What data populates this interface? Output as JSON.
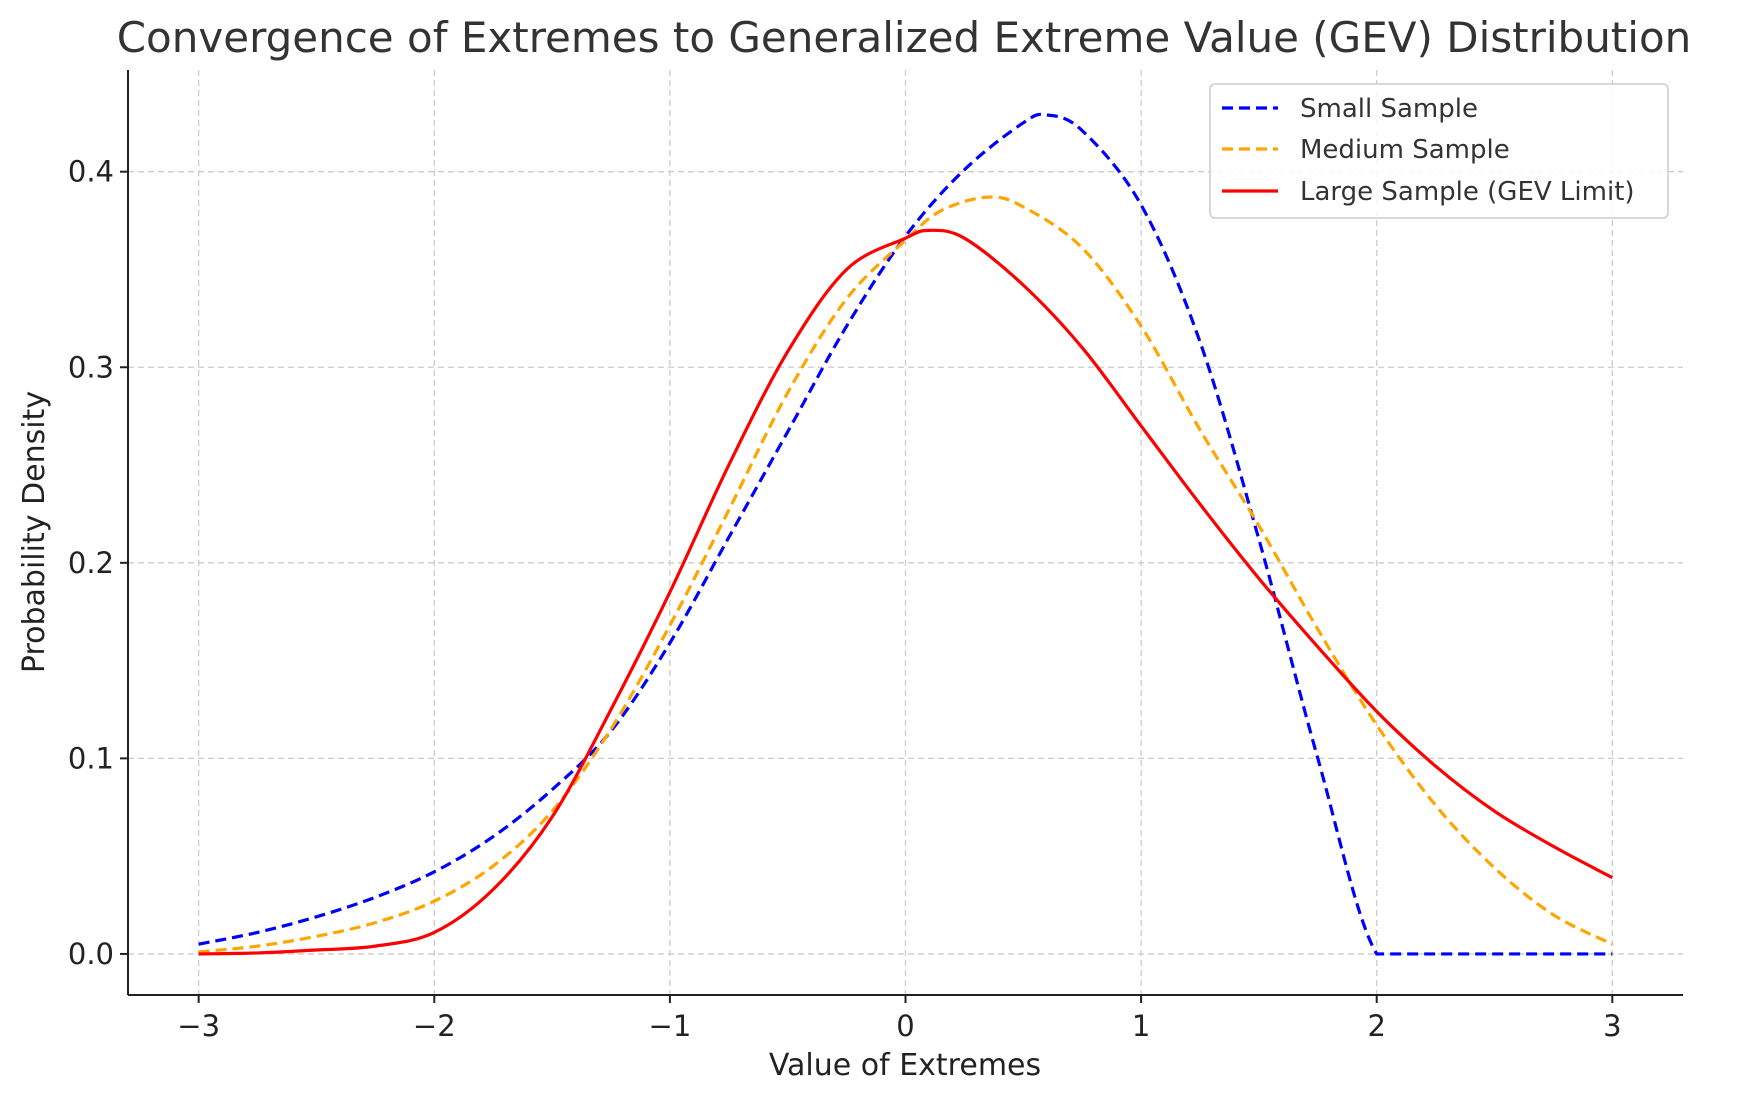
{
  "chart_data": {
    "type": "line",
    "title": "Convergence of Extremes to Generalized Extreme Value (GEV) Distribution",
    "xlabel": "Value of Extremes",
    "ylabel": "Probability Density",
    "xlim": [
      -3.3,
      3.3
    ],
    "ylim": [
      -0.021,
      0.452
    ],
    "xticks": [
      -3,
      -2,
      -1,
      0,
      1,
      2,
      3
    ],
    "xtick_labels": [
      "−3",
      "−2",
      "−1",
      "0",
      "1",
      "2",
      "3"
    ],
    "yticks": [
      0.0,
      0.1,
      0.2,
      0.3,
      0.4
    ],
    "ytick_labels": [
      "0.0",
      "0.1",
      "0.2",
      "0.3",
      "0.4"
    ],
    "grid": true,
    "legend_position": "top-right",
    "series": [
      {
        "name": "Small Sample",
        "color": "#0000ff",
        "style": "dashed",
        "x": [
          -3.0,
          -2.75,
          -2.5,
          -2.25,
          -2.0,
          -1.75,
          -1.5,
          -1.25,
          -1.0,
          -0.75,
          -0.5,
          -0.25,
          0.0,
          0.25,
          0.5,
          0.6,
          0.75,
          1.0,
          1.25,
          1.5,
          1.75,
          2.0,
          2.25,
          2.5,
          2.75,
          3.0
        ],
        "y": [
          0.005,
          0.011,
          0.019,
          0.029,
          0.042,
          0.06,
          0.084,
          0.114,
          0.159,
          0.213,
          0.267,
          0.321,
          0.367,
          0.401,
          0.425,
          0.429,
          0.421,
          0.383,
          0.313,
          0.212,
          0.1,
          0.0,
          0.0,
          0.0,
          0.0,
          0.0
        ]
      },
      {
        "name": "Medium Sample",
        "color": "#ffa500",
        "style": "dashed",
        "x": [
          -3.0,
          -2.75,
          -2.5,
          -2.25,
          -2.0,
          -1.75,
          -1.5,
          -1.25,
          -1.0,
          -0.75,
          -0.5,
          -0.25,
          0.0,
          0.15,
          0.35,
          0.5,
          0.75,
          1.0,
          1.25,
          1.5,
          1.75,
          2.0,
          2.25,
          2.5,
          2.75,
          3.0
        ],
        "y": [
          0.001,
          0.004,
          0.009,
          0.016,
          0.027,
          0.045,
          0.073,
          0.115,
          0.168,
          0.227,
          0.287,
          0.335,
          0.365,
          0.38,
          0.387,
          0.382,
          0.361,
          0.321,
          0.268,
          0.219,
          0.166,
          0.117,
          0.076,
          0.044,
          0.02,
          0.005
        ]
      },
      {
        "name": "Large Sample (GEV Limit)",
        "color": "#ff0000",
        "style": "solid",
        "x": [
          -3.0,
          -2.75,
          -2.5,
          -2.25,
          -2.0,
          -1.75,
          -1.5,
          -1.25,
          -1.0,
          -0.75,
          -0.5,
          -0.25,
          0.0,
          0.1,
          0.25,
          0.5,
          0.75,
          1.0,
          1.25,
          1.5,
          1.75,
          2.0,
          2.25,
          2.5,
          2.75,
          3.0
        ],
        "y": [
          0.0,
          0.0005,
          0.002,
          0.004,
          0.011,
          0.033,
          0.07,
          0.125,
          0.185,
          0.25,
          0.308,
          0.35,
          0.366,
          0.37,
          0.366,
          0.342,
          0.31,
          0.27,
          0.23,
          0.192,
          0.157,
          0.124,
          0.096,
          0.073,
          0.055,
          0.039
        ]
      }
    ]
  }
}
